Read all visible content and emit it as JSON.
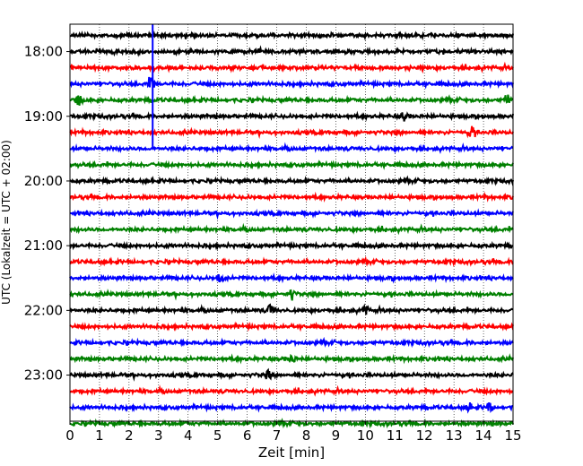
{
  "chart_data": {
    "type": "line",
    "title": "",
    "xlabel": "Zeit  [min]",
    "ylabel": "UTC (Lokalzeit = UTC + 02:00)",
    "xlim": [
      0,
      15
    ],
    "x_ticks": [
      0,
      1,
      2,
      3,
      4,
      5,
      6,
      7,
      8,
      9,
      10,
      11,
      12,
      13,
      14,
      15
    ],
    "y_tick_labels": [
      "18:00",
      "19:00",
      "20:00",
      "21:00",
      "22:00",
      "23:00"
    ],
    "grid": "vertical dotted",
    "trace_colors": [
      "#000000",
      "#ff0000",
      "#0000ff",
      "#008000"
    ],
    "series": [
      {
        "row": "17:45",
        "color": "#000000"
      },
      {
        "row": "18:00",
        "color": "#000000"
      },
      {
        "row": "18:15",
        "color": "#ff0000"
      },
      {
        "row": "18:30",
        "color": "#0000ff"
      },
      {
        "row": "18:45",
        "color": "#008000"
      },
      {
        "row": "19:00",
        "color": "#000000"
      },
      {
        "row": "19:15",
        "color": "#ff0000"
      },
      {
        "row": "19:30",
        "color": "#0000ff"
      },
      {
        "row": "19:45",
        "color": "#008000"
      },
      {
        "row": "20:00",
        "color": "#000000"
      },
      {
        "row": "20:15",
        "color": "#ff0000"
      },
      {
        "row": "20:30",
        "color": "#0000ff"
      },
      {
        "row": "20:45",
        "color": "#008000"
      },
      {
        "row": "21:00",
        "color": "#000000"
      },
      {
        "row": "21:15",
        "color": "#ff0000"
      },
      {
        "row": "21:30",
        "color": "#0000ff"
      },
      {
        "row": "21:45",
        "color": "#008000"
      },
      {
        "row": "22:00",
        "color": "#000000"
      },
      {
        "row": "22:15",
        "color": "#ff0000"
      },
      {
        "row": "22:30",
        "color": "#0000ff"
      },
      {
        "row": "22:45",
        "color": "#008000"
      },
      {
        "row": "23:00",
        "color": "#000000"
      },
      {
        "row": "23:15",
        "color": "#ff0000"
      },
      {
        "row": "23:30",
        "color": "#0000ff"
      },
      {
        "row": "23:45",
        "color": "#008000"
      }
    ],
    "annotations": [
      {
        "type": "vertical-marker",
        "x": 2.8,
        "from_row": "17:45",
        "to_row": "19:30",
        "color": "#0000ff"
      }
    ],
    "events": [
      {
        "row": "18:30",
        "x": 2.75,
        "amplitude": 0.45
      },
      {
        "row": "18:45",
        "x": 0.3,
        "amplitude": 0.3
      },
      {
        "row": "18:45",
        "x": 14.8,
        "amplitude": 0.3
      },
      {
        "row": "19:15",
        "x": 13.6,
        "amplitude": 0.35
      },
      {
        "row": "19:00",
        "x": 11.3,
        "amplitude": 0.25
      },
      {
        "row": "21:30",
        "x": 5.1,
        "amplitude": 0.25
      },
      {
        "row": "21:45",
        "x": 7.5,
        "amplitude": 0.3
      },
      {
        "row": "22:00",
        "x": 6.8,
        "amplitude": 0.35
      },
      {
        "row": "22:00",
        "x": 10.0,
        "amplitude": 0.25
      },
      {
        "row": "22:45",
        "x": 7.5,
        "amplitude": 0.25
      },
      {
        "row": "23:00",
        "x": 6.7,
        "amplitude": 0.25
      },
      {
        "row": "23:30",
        "x": 14.2,
        "amplitude": 0.25
      },
      {
        "row": "23:30",
        "x": 13.5,
        "amplitude": 0.25
      }
    ]
  }
}
